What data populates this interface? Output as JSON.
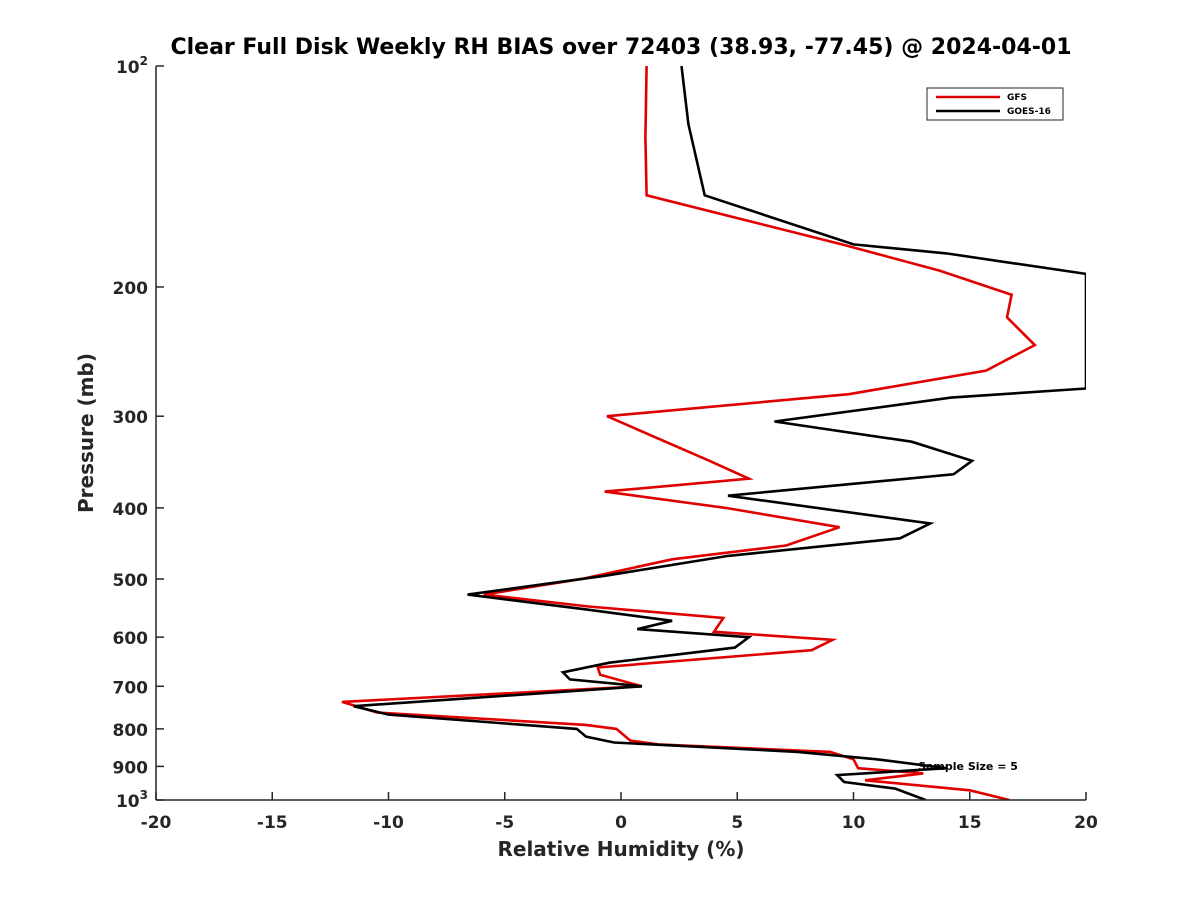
{
  "chart_data": {
    "type": "line",
    "title": "Clear Full Disk Weekly RH BIAS over 72403 (38.93, -77.45) @ 2024-04-01",
    "xlabel": "Relative Humidity (%)",
    "ylabel": "Pressure (mb)",
    "xlim": [
      -20,
      20
    ],
    "ylim": [
      100,
      1000
    ],
    "y_scale": "log",
    "y_reversed": true,
    "grid": false,
    "legend_position": "top-right",
    "annotation": "Sample Size = 5",
    "x_ticks": [
      "-20",
      "-15",
      "-10",
      "-5",
      "0",
      "5",
      "10",
      "15",
      "20"
    ],
    "y_ticks": [
      {
        "value": 100,
        "label": "10",
        "sup": "2"
      },
      {
        "value": 200,
        "label": "200",
        "sup": ""
      },
      {
        "value": 300,
        "label": "300",
        "sup": ""
      },
      {
        "value": 400,
        "label": "400",
        "sup": ""
      },
      {
        "value": 500,
        "label": "500",
        "sup": ""
      },
      {
        "value": 600,
        "label": "600",
        "sup": ""
      },
      {
        "value": 700,
        "label": "700",
        "sup": ""
      },
      {
        "value": 800,
        "label": "800",
        "sup": ""
      },
      {
        "value": 900,
        "label": "900",
        "sup": ""
      },
      {
        "value": 1000,
        "label": "10",
        "sup": "3"
      }
    ],
    "series": [
      {
        "name": "GFS",
        "color": "#e00000",
        "points": [
          [
            1.1,
            100
          ],
          [
            1.05,
            125
          ],
          [
            1.1,
            150
          ],
          [
            9.5,
            175
          ],
          [
            13.7,
            190
          ],
          [
            16.8,
            205
          ],
          [
            16.6,
            220
          ],
          [
            17.8,
            240
          ],
          [
            15.7,
            260
          ],
          [
            9.8,
            280
          ],
          [
            -0.6,
            300
          ],
          [
            3.8,
            345
          ],
          [
            5.5,
            365
          ],
          [
            -0.7,
            380
          ],
          [
            4.5,
            400
          ],
          [
            9.4,
            425
          ],
          [
            7.1,
            450
          ],
          [
            2.2,
            470
          ],
          [
            -1.7,
            500
          ],
          [
            -5.9,
            525
          ],
          [
            -1.4,
            545
          ],
          [
            4.4,
            565
          ],
          [
            4.0,
            590
          ],
          [
            9.1,
            605
          ],
          [
            8.2,
            625
          ],
          [
            -1.0,
            660
          ],
          [
            -0.9,
            675
          ],
          [
            0.9,
            700
          ],
          [
            -12.0,
            735
          ],
          [
            -10.5,
            760
          ],
          [
            -1.5,
            790
          ],
          [
            -0.2,
            800
          ],
          [
            0.4,
            830
          ],
          [
            1.6,
            840
          ],
          [
            9.0,
            860
          ],
          [
            10.0,
            880
          ],
          [
            10.2,
            905
          ],
          [
            13.0,
            920
          ],
          [
            10.5,
            940
          ],
          [
            15.0,
            970
          ],
          [
            16.7,
            1000
          ]
        ]
      },
      {
        "name": "GOES-16",
        "color": "#000000",
        "points": [
          [
            2.6,
            100
          ],
          [
            2.9,
            120
          ],
          [
            3.6,
            150
          ],
          [
            10.0,
            175
          ],
          [
            14.0,
            180
          ],
          [
            20.0,
            192
          ],
          [
            20.0,
            275
          ],
          [
            14.2,
            283
          ],
          [
            6.6,
            305
          ],
          [
            12.5,
            325
          ],
          [
            15.1,
            345
          ],
          [
            14.3,
            360
          ],
          [
            4.6,
            385
          ],
          [
            13.3,
            420
          ],
          [
            12.0,
            440
          ],
          [
            4.6,
            465
          ],
          [
            -0.7,
            495
          ],
          [
            -6.6,
            525
          ],
          [
            -1.5,
            550
          ],
          [
            2.2,
            570
          ],
          [
            0.7,
            585
          ],
          [
            5.5,
            600
          ],
          [
            4.9,
            620
          ],
          [
            -0.5,
            650
          ],
          [
            -2.5,
            670
          ],
          [
            -2.2,
            685
          ],
          [
            0.9,
            700
          ],
          [
            -11.5,
            745
          ],
          [
            -10.0,
            765
          ],
          [
            -1.9,
            800
          ],
          [
            -1.5,
            820
          ],
          [
            -0.3,
            835
          ],
          [
            7.6,
            860
          ],
          [
            11.0,
            880
          ],
          [
            14.0,
            905
          ],
          [
            9.3,
            925
          ],
          [
            9.6,
            945
          ],
          [
            11.8,
            965
          ],
          [
            13.1,
            1000
          ]
        ]
      }
    ]
  }
}
